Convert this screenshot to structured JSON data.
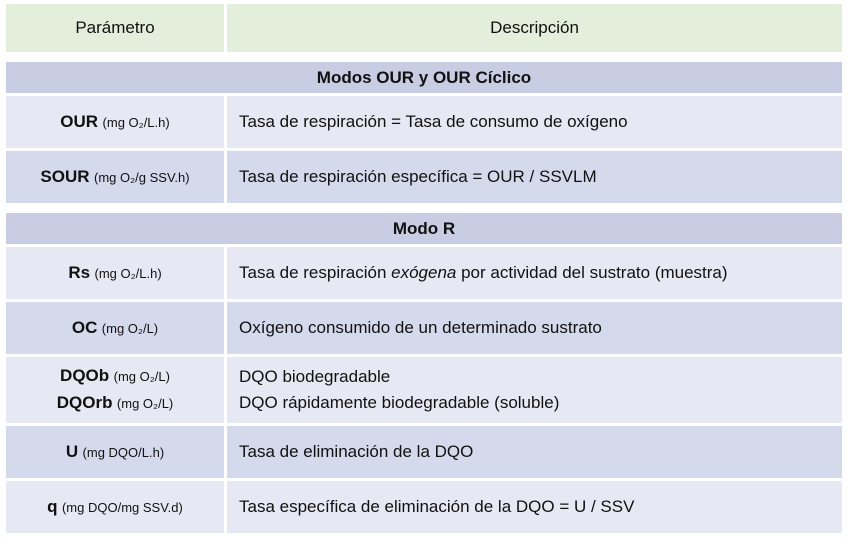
{
  "header": {
    "param": "Parámetro",
    "desc": "Descripción"
  },
  "sections": [
    {
      "title": "Modos OUR y OUR Cíclico"
    },
    {
      "title": "Modo R"
    }
  ],
  "rows": {
    "our": {
      "name": "OUR",
      "unit": "(mg O₂/L.h)",
      "desc": "Tasa de respiración = Tasa de consumo de oxígeno"
    },
    "sour": {
      "name": "SOUR",
      "unit": "(mg O₂/g SSV.h)",
      "desc": "Tasa de respiración específica = OUR / SSVLM"
    },
    "rs": {
      "name": "Rs",
      "unit": "(mg O₂/L.h)",
      "desc_pre": "Tasa de respiración ",
      "desc_em": "exógena",
      "desc_post": " por actividad del sustrato (muestra)"
    },
    "oc": {
      "name": "OC",
      "unit": "(mg O₂/L)",
      "desc": "Oxígeno consumido de un determinado sustrato"
    },
    "dqob": {
      "name": "DQOb",
      "unit": "(mg O₂/L)",
      "desc": "DQO biodegradable"
    },
    "dqorb": {
      "name": "DQOrb",
      "unit": "(mg O₂/L)",
      "desc": "DQO rápidamente biodegradable (soluble)"
    },
    "u": {
      "name": "U",
      "unit": "(mg DQO/L.h)",
      "desc": "Tasa de eliminación de la DQO"
    },
    "q": {
      "name": "q",
      "unit": "(mg DQO/mg SSV.d)",
      "desc": "Tasa específica de eliminación de la DQO = U / SSV"
    }
  }
}
